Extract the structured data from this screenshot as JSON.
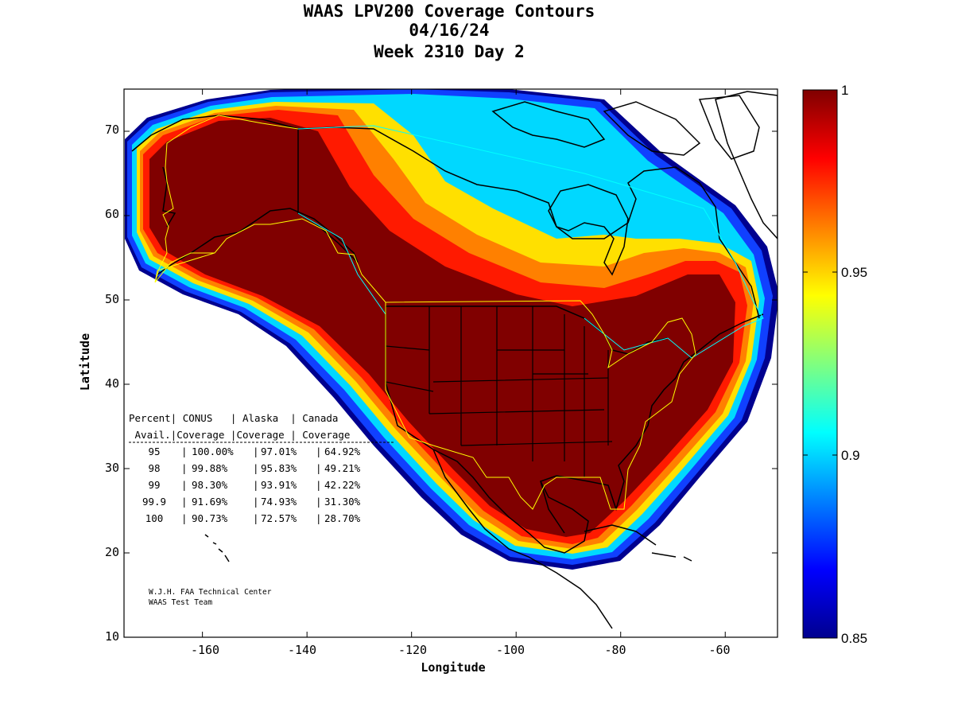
{
  "title_lines": [
    "WAAS LPV200 Coverage Contours",
    "04/16/24",
    "Week 2310 Day 2"
  ],
  "xlabel": "Longitude",
  "ylabel": "Latitude",
  "x_ticks": [
    "-160",
    "-140",
    "-120",
    "-100",
    "-80",
    "-60"
  ],
  "y_ticks": [
    "10",
    "20",
    "30",
    "40",
    "50",
    "60",
    "70"
  ],
  "colorbar": {
    "range": [
      0.85,
      1.0
    ],
    "ticks": [
      "0.85",
      "0.9",
      "0.95",
      "1"
    ],
    "colormap": "jet"
  },
  "coverage_table": {
    "header1": "Percent| CONUS   | Alaska  | Canada",
    "header2": " Avail.|Coverage |Coverage | Coverage",
    "rows": [
      {
        "avail": "95",
        "conus": "100.00%",
        "alaska": "97.01%",
        "canada": "64.92%"
      },
      {
        "avail": "98",
        "conus": "99.88%",
        "alaska": "95.83%",
        "canada": "49.21%"
      },
      {
        "avail": "99",
        "conus": "98.30%",
        "alaska": "93.91%",
        "canada": "42.22%"
      },
      {
        "avail": "99.9",
        "conus": "91.69%",
        "alaska": "74.93%",
        "canada": "31.30%"
      },
      {
        "avail": "100",
        "conus": "90.73%",
        "alaska": "72.57%",
        "canada": "28.70%"
      }
    ]
  },
  "credit_lines": [
    "W.J.H. FAA Technical Center",
    "WAAS Test Team"
  ],
  "map_extent": {
    "lon": [
      -175,
      -50
    ],
    "lat": [
      10,
      75
    ]
  },
  "colors": {
    "dark_red": "#7f0000",
    "red": "#ff0000",
    "orange": "#ff8000",
    "yellow": "#ffff00",
    "cyan": "#00ffff",
    "blue": "#0000ff",
    "dark_blue": "#00008f",
    "service_boundary": "#ffff00",
    "fir_boundary": "#00ffff"
  }
}
